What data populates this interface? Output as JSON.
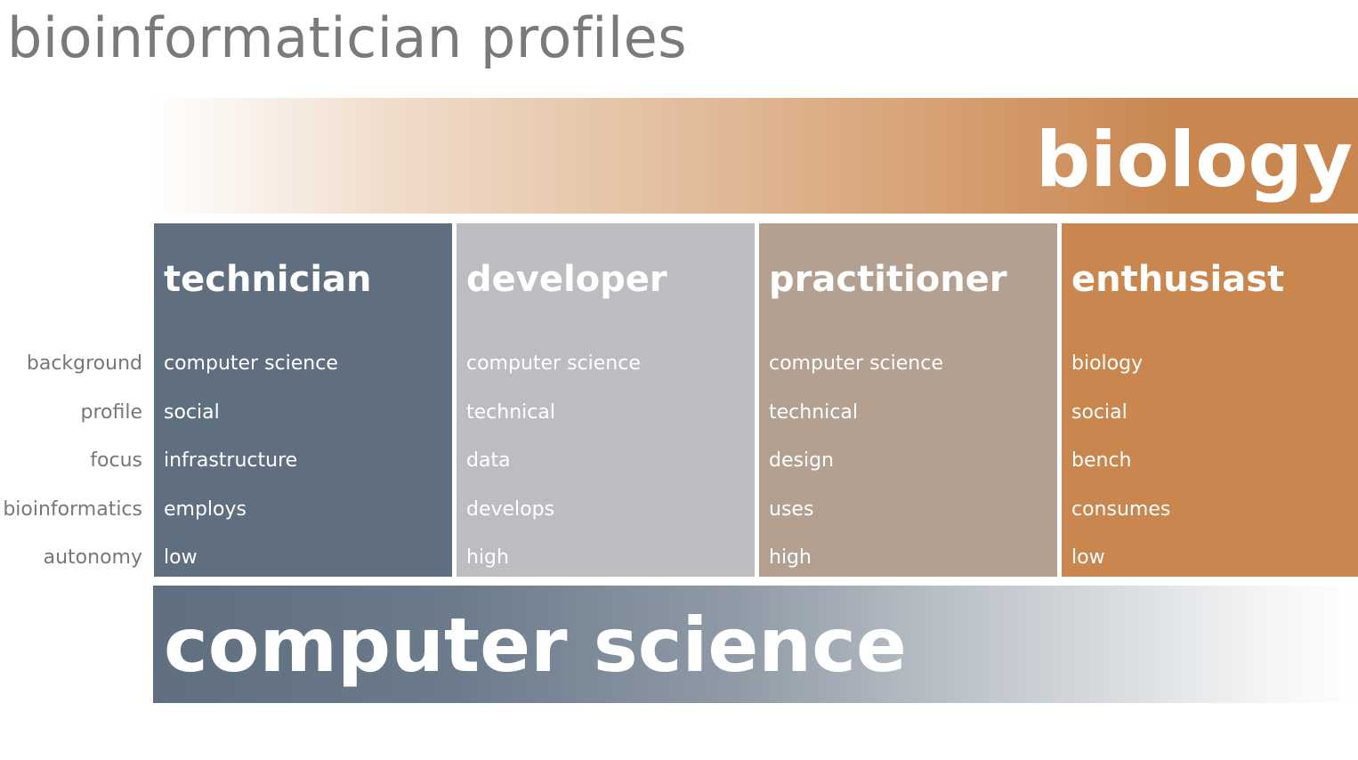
{
  "title": "bioinformatician profiles",
  "bands": {
    "top": "biology",
    "bottom": "computer science"
  },
  "row_labels": [
    "background",
    "profile",
    "focus",
    "bioinformatics",
    "autonomy"
  ],
  "profiles": [
    {
      "name": "technician",
      "values": [
        "computer science",
        "social",
        "infrastructure",
        "employs",
        "low"
      ],
      "color": "#5f6f80"
    },
    {
      "name": "developer",
      "values": [
        "computer science",
        "technical",
        "data",
        "develops",
        "high"
      ],
      "color": "#bebcc0"
    },
    {
      "name": "practitioner",
      "values": [
        "computer science",
        "technical",
        "design",
        "uses",
        "high"
      ],
      "color": "#b3a090"
    },
    {
      "name": "enthusiast",
      "values": [
        "biology",
        "social",
        "bench",
        "consumes",
        "low"
      ],
      "color": "#c9864f"
    }
  ]
}
